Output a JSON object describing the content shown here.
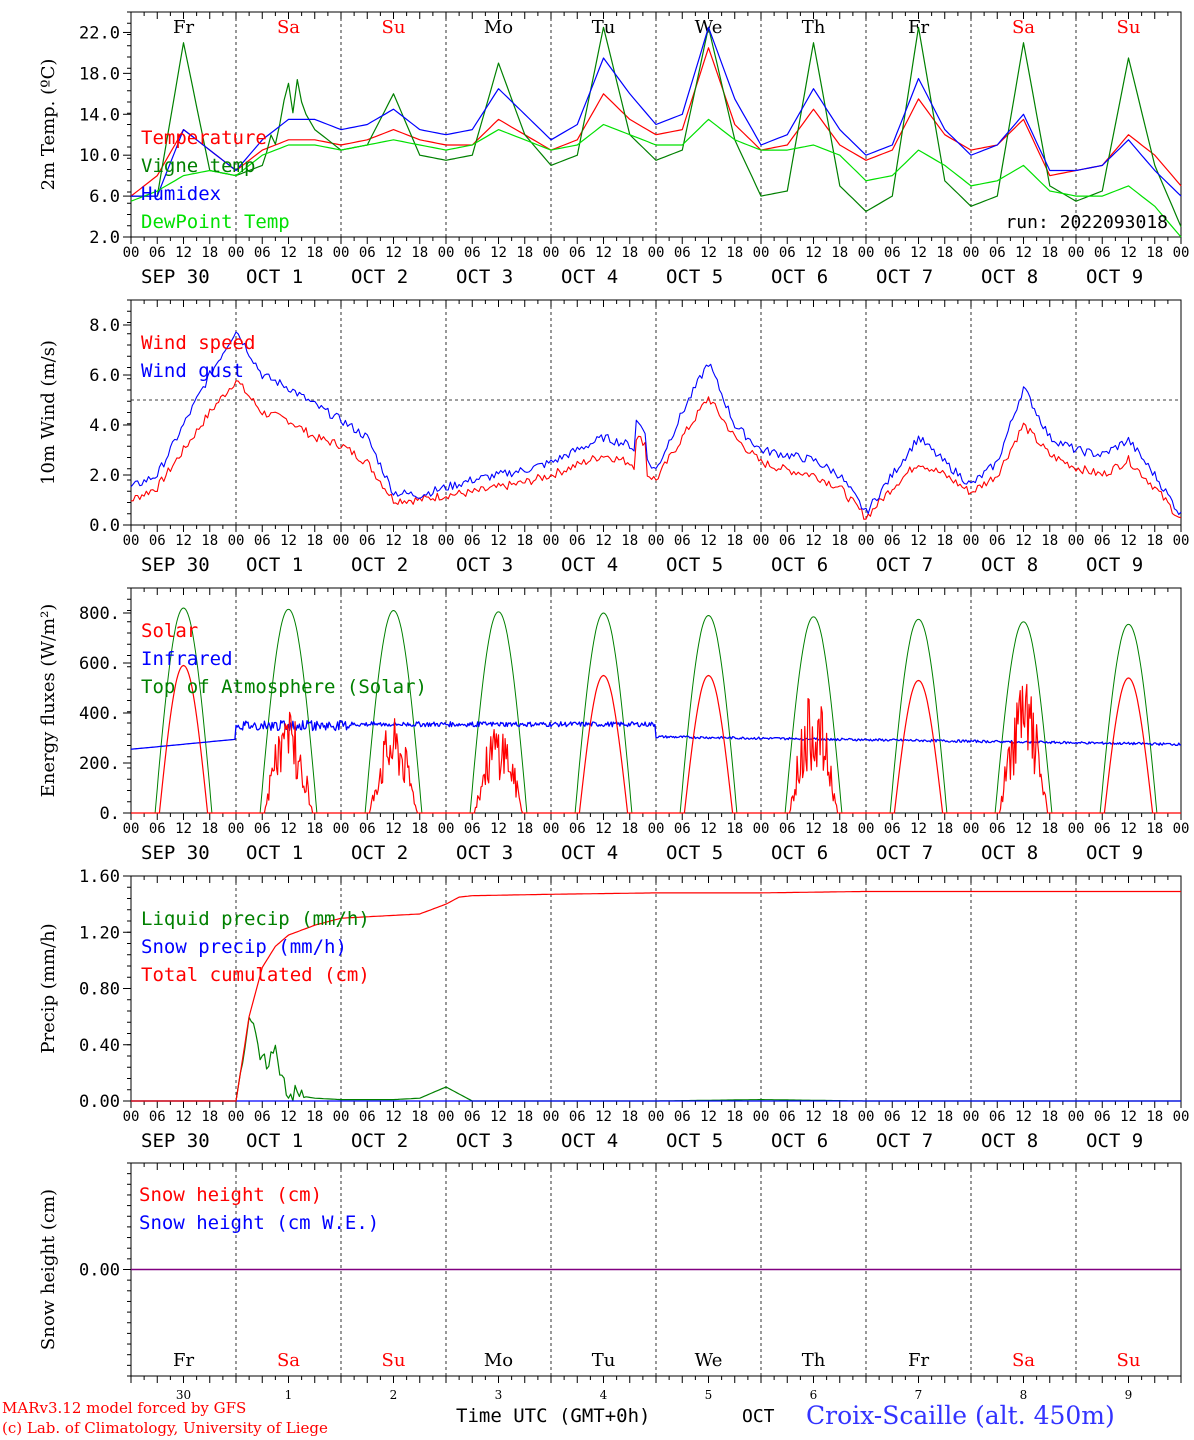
{
  "days_top": [
    "Fr",
    "Sa",
    "Su",
    "Mo",
    "Tu",
    "We",
    "Th",
    "Fr",
    "Sa",
    "Su"
  ],
  "weekend_days": [
    "Sa",
    "Su"
  ],
  "date_labels": [
    "SEP 30",
    "OCT  1",
    "OCT  2",
    "OCT  3",
    "OCT  4",
    "OCT  5",
    "OCT  6",
    "OCT  7",
    "OCT  8",
    "OCT  9"
  ],
  "hour_ticks": [
    "00",
    "06",
    "12",
    "18"
  ],
  "final_hour_tick": "00",
  "bottom_day_numbers": [
    "30",
    "1",
    "2",
    "3",
    "4",
    "5",
    "6",
    "7",
    "8",
    "9"
  ],
  "xlabel": "Time UTC (GMT+0h)",
  "month_label": "OCT",
  "station": "Croix-Scaille (alt. 450m)",
  "credit_line1": "MARv3.12 model forced by GFS",
  "credit_line2": "(c) Lab. of Climatology, University of Liege",
  "run_label": "run: 2022093018",
  "colors": {
    "red": "#ff0000",
    "green": "#008000",
    "blue": "#0000ff",
    "lightgreen": "#00e000",
    "purple": "#800080",
    "axis": "#000000"
  },
  "chart_data": [
    {
      "type": "line",
      "ylabel": "2m Temp. (ºC)",
      "ylim": [
        2,
        24
      ],
      "yticks": [
        "2.0",
        "6.0",
        "10.0",
        "14.0",
        "18.0",
        "22.0"
      ],
      "x_hours": [
        0,
        6,
        12,
        18,
        24,
        30,
        36,
        42,
        48,
        54,
        60,
        66,
        72,
        78,
        84,
        90,
        96,
        102,
        108,
        114,
        120,
        126,
        132,
        138,
        144,
        150,
        156,
        162,
        168,
        174,
        180,
        186,
        192,
        198,
        204,
        210,
        216,
        222,
        228,
        234,
        240
      ],
      "series": [
        {
          "name": "Temperature",
          "color": "red",
          "values": [
            6.0,
            8.0,
            12.5,
            10.5,
            8.5,
            10.5,
            11.5,
            11.5,
            11.0,
            11.5,
            12.5,
            11.5,
            11.0,
            11.0,
            13.5,
            12.0,
            10.5,
            11.5,
            16.0,
            13.5,
            12.0,
            12.5,
            20.5,
            13.0,
            10.5,
            11.0,
            14.5,
            11.0,
            9.5,
            10.5,
            15.5,
            12.0,
            10.5,
            11.0,
            13.5,
            8.0,
            8.5,
            9.0,
            12.0,
            10.0,
            7.0
          ]
        },
        {
          "name": "Vigne temp",
          "color": "green",
          "values": [
            6.0,
            6.0,
            21.0,
            8.5,
            8.0,
            9.0,
            17.0,
            12.5,
            10.5,
            11.0,
            16.0,
            10.0,
            9.5,
            10.0,
            19.0,
            12.0,
            9.0,
            10.0,
            22.5,
            12.0,
            9.5,
            10.5,
            22.5,
            11.5,
            6.0,
            6.5,
            21.0,
            7.0,
            4.5,
            6.0,
            22.5,
            7.5,
            5.0,
            6.0,
            21.0,
            7.0,
            5.5,
            6.5,
            19.5,
            9.0,
            3.0
          ]
        },
        {
          "name": "Humidex",
          "color": "blue",
          "values": [
            6.0,
            6.0,
            12.5,
            10.5,
            8.5,
            11.5,
            13.5,
            13.5,
            12.5,
            13.0,
            14.5,
            12.5,
            12.0,
            12.5,
            16.5,
            14.0,
            11.5,
            13.0,
            19.5,
            16.0,
            13.0,
            14.0,
            22.5,
            15.5,
            11.0,
            12.0,
            16.5,
            12.5,
            10.0,
            11.0,
            17.5,
            12.5,
            10.0,
            11.0,
            14.0,
            8.5,
            8.5,
            9.0,
            11.5,
            8.5,
            6.0
          ]
        },
        {
          "name": "DewPoint Temp",
          "color": "lightgreen",
          "values": [
            5.5,
            6.5,
            8.0,
            8.5,
            8.0,
            10.0,
            11.0,
            11.0,
            10.5,
            11.0,
            11.5,
            11.0,
            10.5,
            11.0,
            12.5,
            11.5,
            10.5,
            11.0,
            13.0,
            12.0,
            11.0,
            11.0,
            13.5,
            11.5,
            10.5,
            10.5,
            11.0,
            10.0,
            7.5,
            8.0,
            10.5,
            9.0,
            7.0,
            7.5,
            9.0,
            6.5,
            6.0,
            6.0,
            7.0,
            5.0,
            2.0
          ]
        }
      ]
    },
    {
      "type": "line",
      "ylabel": "10m Wind (m/s)",
      "ylim": [
        0,
        9
      ],
      "yticks": [
        "0.0",
        "2.0",
        "4.0",
        "6.0",
        "8.0"
      ],
      "reference_line": 5,
      "x_hours": [
        0,
        6,
        12,
        18,
        24,
        30,
        36,
        42,
        48,
        54,
        60,
        66,
        72,
        78,
        84,
        90,
        96,
        102,
        108,
        114,
        120,
        126,
        132,
        138,
        144,
        150,
        156,
        162,
        168,
        174,
        180,
        186,
        192,
        198,
        204,
        210,
        216,
        222,
        228,
        234,
        240
      ],
      "series": [
        {
          "name": "Wind speed",
          "color": "red",
          "values": [
            1.0,
            1.5,
            3.0,
            4.5,
            5.8,
            4.5,
            4.2,
            3.5,
            3.2,
            2.5,
            1.0,
            1.0,
            1.2,
            1.3,
            1.5,
            1.7,
            2.0,
            2.4,
            2.8,
            2.5,
            1.8,
            3.5,
            5.1,
            3.5,
            2.5,
            2.2,
            2.0,
            1.5,
            0.3,
            1.5,
            2.5,
            2.0,
            1.3,
            2.0,
            4.0,
            2.8,
            2.3,
            2.0,
            2.6,
            1.5,
            0.2
          ]
        },
        {
          "name": "Wind gust",
          "color": "blue",
          "values": [
            1.5,
            2.0,
            4.0,
            6.0,
            7.8,
            6.0,
            5.5,
            4.8,
            4.2,
            3.5,
            1.3,
            1.2,
            1.5,
            1.8,
            2.0,
            2.2,
            2.5,
            3.0,
            3.5,
            3.2,
            2.2,
            4.5,
            6.5,
            4.0,
            3.0,
            2.8,
            2.6,
            2.0,
            0.5,
            2.0,
            3.5,
            2.5,
            1.6,
            2.5,
            5.5,
            3.5,
            3.0,
            2.8,
            3.4,
            2.0,
            0.4
          ]
        }
      ]
    },
    {
      "type": "line",
      "ylabel": "Energy fluxes (W/m²)",
      "ylim": [
        0,
        900
      ],
      "yticks": [
        "0.",
        "200.",
        "400.",
        "600.",
        "800."
      ],
      "peaks_solar": [
        590,
        440,
        380,
        380,
        550,
        550,
        490,
        530,
        540,
        540
      ],
      "peak_toa": [
        820,
        815,
        810,
        805,
        800,
        790,
        785,
        775,
        765,
        755
      ],
      "infrared_range": [
        255,
        380
      ],
      "series": [
        {
          "name": "Solar",
          "color": "red"
        },
        {
          "name": "Infrared",
          "color": "blue"
        },
        {
          "name": "Top of Atmosphere (Solar)",
          "color": "green"
        }
      ]
    },
    {
      "type": "line",
      "ylabel": "Precip (mm/h)",
      "ylim": [
        0,
        1.6
      ],
      "yticks": [
        "0.00",
        "0.40",
        "0.80",
        "1.20",
        "1.60"
      ],
      "x_hours": [
        0,
        24,
        27,
        30,
        33,
        36,
        42,
        48,
        60,
        66,
        72,
        75,
        78,
        96,
        120,
        144,
        168,
        192,
        216,
        240
      ],
      "series": [
        {
          "name": "Liquid precip (mm/h)",
          "color": "green",
          "values": [
            0,
            0,
            0.6,
            0.25,
            0.35,
            0.05,
            0.02,
            0.01,
            0.01,
            0.02,
            0.1,
            0.05,
            0,
            0,
            0,
            0.01,
            0,
            0,
            0,
            0
          ]
        },
        {
          "name": "Snow precip (mm/h)",
          "color": "blue",
          "values": [
            0,
            0,
            0,
            0,
            0,
            0,
            0,
            0,
            0,
            0,
            0,
            0,
            0,
            0,
            0,
            0,
            0,
            0,
            0,
            0
          ]
        },
        {
          "name": "Total cumulated (cm)",
          "color": "red",
          "values": [
            0,
            0,
            0.6,
            0.95,
            1.1,
            1.18,
            1.25,
            1.3,
            1.32,
            1.33,
            1.4,
            1.45,
            1.46,
            1.47,
            1.48,
            1.48,
            1.49,
            1.49,
            1.49,
            1.49
          ]
        }
      ]
    },
    {
      "type": "line",
      "ylabel": "Snow height (cm)",
      "ylim": [
        -1,
        1
      ],
      "yticks": [
        "0.00"
      ],
      "series": [
        {
          "name": "Snow height (cm)",
          "color": "red",
          "values": [
            0,
            0
          ]
        },
        {
          "name": "Snow height (cm W.E.)",
          "color": "blue",
          "values": [
            0,
            0
          ]
        }
      ]
    }
  ]
}
